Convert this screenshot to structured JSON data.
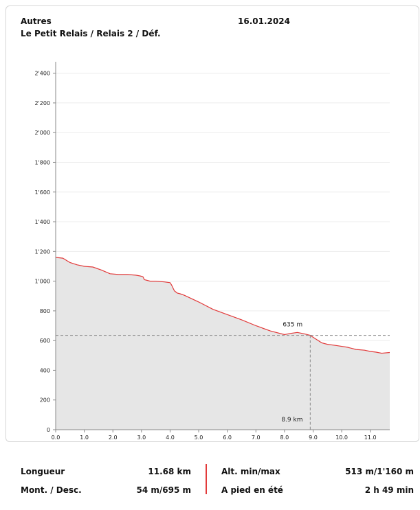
{
  "header": {
    "category": "Autres",
    "date": "16.01.2024",
    "route": "Le Petit Relais / Relais 2 / Déf."
  },
  "chart_data": {
    "type": "area",
    "xlabel": "",
    "ylabel": "",
    "xlim": [
      0,
      11.68
    ],
    "ylim": [
      0,
      2500
    ],
    "x_ticks": [
      0,
      1,
      2,
      3,
      4,
      5,
      6,
      7,
      8,
      9,
      10,
      11
    ],
    "x_tick_labels": [
      "0.0",
      "1.0",
      "2.0",
      "3.0",
      "4.0",
      "5.0",
      "6.0",
      "7.0",
      "8.0",
      "9.0",
      "10.0",
      "11.0"
    ],
    "y_ticks": [
      0,
      200,
      400,
      600,
      800,
      1000,
      1200,
      1400,
      1600,
      1800,
      2000,
      2200,
      2400
    ],
    "y_tick_labels": [
      "0",
      "200",
      "400",
      "600",
      "800",
      "1'000",
      "1'200",
      "1'400",
      "1'600",
      "1'800",
      "2'000",
      "2'200",
      "2'400"
    ],
    "grid": true,
    "line_color": "#e23a3a",
    "fill_color": "#e6e6e6",
    "profile": {
      "x": [
        0,
        0.25,
        0.5,
        0.75,
        1.0,
        1.3,
        1.6,
        1.9,
        2.2,
        2.5,
        2.8,
        2.95,
        3.05,
        3.1,
        3.2,
        3.3,
        3.5,
        3.8,
        4.0,
        4.05,
        4.15,
        4.25,
        4.35,
        4.5,
        5.0,
        5.5,
        6.0,
        6.5,
        7.0,
        7.5,
        8.0,
        8.2,
        8.45,
        8.7,
        8.9,
        9.1,
        9.3,
        9.5,
        9.8,
        10.2,
        10.5,
        10.8,
        11.0,
        11.2,
        11.4,
        11.68
      ],
      "y": [
        1160,
        1155,
        1125,
        1110,
        1100,
        1095,
        1075,
        1050,
        1045,
        1045,
        1040,
        1035,
        1030,
        1010,
        1005,
        1000,
        1000,
        995,
        990,
        975,
        935,
        920,
        915,
        905,
        860,
        810,
        775,
        740,
        700,
        665,
        640,
        648,
        655,
        645,
        635,
        610,
        585,
        575,
        567,
        555,
        540,
        535,
        527,
        522,
        515,
        520
      ]
    },
    "marker": {
      "x": 8.9,
      "y": 635,
      "x_label": "8.9 km",
      "y_label": "635 m"
    }
  },
  "stats": {
    "length_label": "Longueur",
    "length_value": "11.68 km",
    "updown_label": "Mont. / Desc.",
    "updown_value": "54 m/695 m",
    "alt_label": "Alt. min/max",
    "alt_value": "513 m/1'160 m",
    "walk_label": "A pied en été",
    "walk_value": "2 h 49 min"
  }
}
